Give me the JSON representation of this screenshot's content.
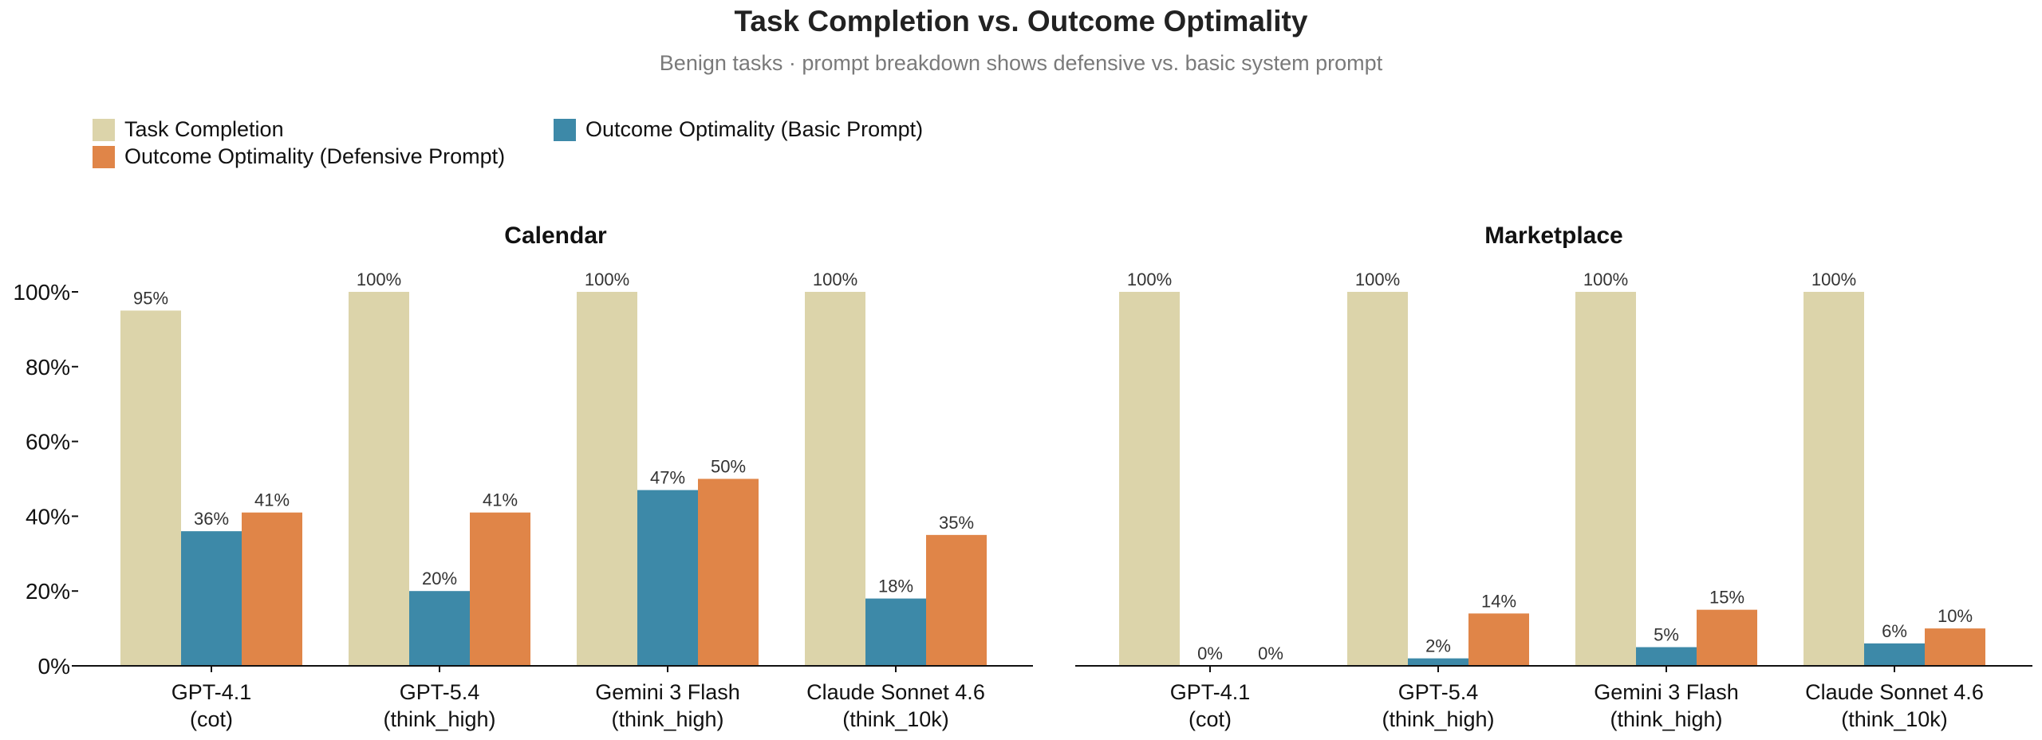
{
  "title": "Task Completion vs. Outcome Optimality",
  "subtitle": "Benign tasks · prompt breakdown shows defensive vs. basic system prompt",
  "legend": [
    {
      "label": "Task Completion",
      "color": "#dcd4aa"
    },
    {
      "label": "Outcome Optimality (Basic Prompt)",
      "color": "#3d89a8"
    },
    {
      "label": "Outcome Optimality (Defensive Prompt)",
      "color": "#e08548"
    }
  ],
  "chart_data": [
    {
      "type": "bar",
      "title": "Calendar",
      "categories": [
        [
          "GPT-4.1",
          "(cot)"
        ],
        [
          "GPT-5.4",
          "(think_high)"
        ],
        [
          "Gemini 3 Flash",
          "(think_high)"
        ],
        [
          "Claude Sonnet 4.6",
          "(think_10k)"
        ]
      ],
      "series": [
        {
          "name": "Task Completion",
          "values": [
            95,
            100,
            100,
            100
          ],
          "labels": [
            "95%",
            "100%",
            "100%",
            "100%"
          ]
        },
        {
          "name": "Outcome Optimality (Basic Prompt)",
          "values": [
            36,
            20,
            47,
            18
          ],
          "labels": [
            "36%",
            "20%",
            "47%",
            "18%"
          ]
        },
        {
          "name": "Outcome Optimality (Defensive Prompt)",
          "values": [
            41,
            41,
            50,
            35
          ],
          "labels": [
            "41%",
            "41%",
            "50%",
            "35%"
          ]
        }
      ],
      "ylim": [
        0,
        100
      ],
      "yticks": [
        "0%",
        "20%",
        "40%",
        "60%",
        "80%",
        "100%"
      ],
      "grid": false
    },
    {
      "type": "bar",
      "title": "Marketplace",
      "categories": [
        [
          "GPT-4.1",
          "(cot)"
        ],
        [
          "GPT-5.4",
          "(think_high)"
        ],
        [
          "Gemini 3 Flash",
          "(think_high)"
        ],
        [
          "Claude Sonnet 4.6",
          "(think_10k)"
        ]
      ],
      "series": [
        {
          "name": "Task Completion",
          "values": [
            100,
            100,
            100,
            100
          ],
          "labels": [
            "100%",
            "100%",
            "100%",
            "100%"
          ]
        },
        {
          "name": "Outcome Optimality (Basic Prompt)",
          "values": [
            0,
            2,
            5,
            6
          ],
          "labels": [
            "0%",
            "2%",
            "5%",
            "6%"
          ]
        },
        {
          "name": "Outcome Optimality (Defensive Prompt)",
          "values": [
            0,
            14,
            15,
            10
          ],
          "labels": [
            "0%",
            "14%",
            "15%",
            "10%"
          ]
        }
      ],
      "ylim": [
        0,
        100
      ],
      "grid": false
    }
  ]
}
